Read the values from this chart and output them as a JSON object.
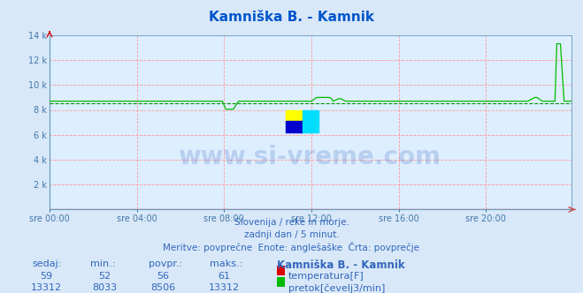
{
  "title": "Kamniška B. - Kamnik",
  "bg_color": "#d8e8f8",
  "plot_bg_color": "#ddeeff",
  "grid_color": "#ff9999",
  "title_color": "#0055cc",
  "axis_color": "#6699bb",
  "text_color": "#3366bb",
  "xlabel_color": "#4477aa",
  "temp_color": "#dd0000",
  "flow_color": "#00bb00",
  "avg_flow_color": "#009900",
  "n_points": 288,
  "temp_value": 59,
  "temp_min": 52,
  "temp_max": 61,
  "temp_avg": 56,
  "temp_current": 59,
  "flow_base": 8700,
  "flow_min": 8033,
  "flow_max": 13312,
  "flow_avg": 8506,
  "flow_current": 13312,
  "ylim_min": 0,
  "ylim_max": 14000,
  "subtitle1": "Slovenija / reke in morje.",
  "subtitle2": "zadnji dan / 5 minut.",
  "subtitle3": "Meritve: povprečne  Enote: anglešaške  Črta: povprečje",
  "xtick_labels": [
    "sre 00:00",
    "sre 04:00",
    "sre 08:00",
    "sre 12:00",
    "sre 16:00",
    "sre 20:00"
  ],
  "xtick_positions": [
    0,
    48,
    96,
    144,
    192,
    240
  ],
  "legend_station": "Kamniška B. - Kamnik",
  "legend_temp_label": "temperatura[F]",
  "legend_flow_label": "pretok[čevelj3/min]",
  "sedaj_label": "sedaj:",
  "min_label": "min.:",
  "povpr_label": "povpr.:",
  "maks_label": "maks.:",
  "ytick_vals": [
    2000,
    4000,
    6000,
    8000,
    10000,
    12000
  ],
  "logo_yellow": "#ffff00",
  "logo_cyan": "#00ddff",
  "logo_blue": "#0000cc",
  "watermark_text": "www.si-vreme.com",
  "watermark_color": "#1144aa",
  "watermark_alpha": 0.18
}
